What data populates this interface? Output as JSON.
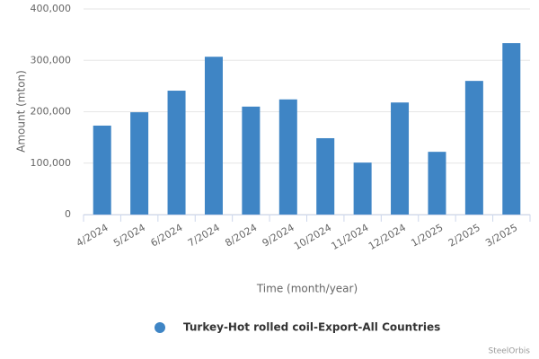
{
  "chart_data": {
    "type": "bar",
    "x_label": "Time (month/year)",
    "y_label": "Amount (mton)",
    "categories": [
      "4/2024",
      "5/2024",
      "6/2024",
      "7/2024",
      "8/2024",
      "9/2024",
      "10/2024",
      "11/2024",
      "12/2024",
      "1/2025",
      "2/2025",
      "3/2025"
    ],
    "series": [
      {
        "name": "Turkey-Hot rolled coil-Export-All Countries",
        "color": "#3f85c5",
        "values": [
          173000,
          199000,
          241000,
          307000,
          210000,
          224000,
          148500,
          101000,
          218000,
          122000,
          260000,
          333500
        ]
      }
    ],
    "ylim": [
      0,
      400000
    ],
    "yticks": [
      0,
      {
        "value": 100000,
        "label": "100,000"
      },
      {
        "value": 200000,
        "label": "200,000"
      },
      {
        "value": 300000,
        "label": "300,000"
      },
      {
        "value": 400000,
        "label": "400,000"
      }
    ],
    "grid": true,
    "legend": "bottom",
    "credit": "SteelOrbis"
  }
}
